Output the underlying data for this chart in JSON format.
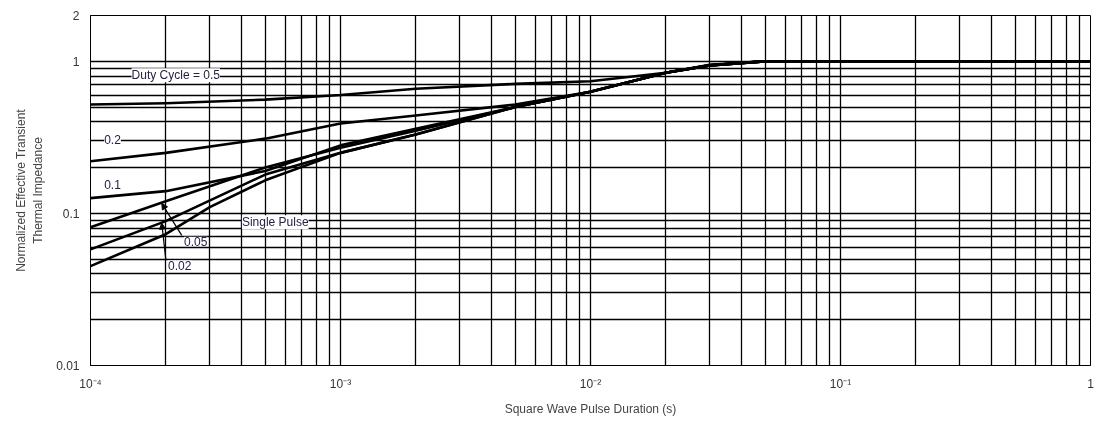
{
  "chart_data": {
    "type": "line",
    "xlabel": "Square Wave Pulse Duration (s)",
    "ylabel": "Normalized Effective Transient\nThermal Impedance",
    "log": "xy",
    "marker": "none",
    "line_style": "solid",
    "xlim": [
      0.0001,
      1
    ],
    "ylim": [
      0.01,
      2
    ],
    "xticks": [
      {
        "value": 0.0001,
        "label": "10⁻⁴"
      },
      {
        "value": 0.0002,
        "label": null
      },
      {
        "value": 0.0003,
        "label": null
      },
      {
        "value": 0.0004,
        "label": null
      },
      {
        "value": 0.0005,
        "label": null
      },
      {
        "value": 0.0006,
        "label": null
      },
      {
        "value": 0.0007,
        "label": null
      },
      {
        "value": 0.0008,
        "label": null
      },
      {
        "value": 0.0009,
        "label": null
      },
      {
        "value": 0.001,
        "label": "10⁻³"
      },
      {
        "value": 0.002,
        "label": null
      },
      {
        "value": 0.003,
        "label": null
      },
      {
        "value": 0.004,
        "label": null
      },
      {
        "value": 0.005,
        "label": null
      },
      {
        "value": 0.006,
        "label": null
      },
      {
        "value": 0.007,
        "label": null
      },
      {
        "value": 0.008,
        "label": null
      },
      {
        "value": 0.009,
        "label": null
      },
      {
        "value": 0.01,
        "label": "10⁻²"
      },
      {
        "value": 0.02,
        "label": null
      },
      {
        "value": 0.03,
        "label": null
      },
      {
        "value": 0.04,
        "label": null
      },
      {
        "value": 0.05,
        "label": null
      },
      {
        "value": 0.06,
        "label": null
      },
      {
        "value": 0.07,
        "label": null
      },
      {
        "value": 0.08,
        "label": null
      },
      {
        "value": 0.09,
        "label": null
      },
      {
        "value": 0.1,
        "label": "10⁻¹"
      },
      {
        "value": 0.2,
        "label": null
      },
      {
        "value": 0.3,
        "label": null
      },
      {
        "value": 0.4,
        "label": null
      },
      {
        "value": 0.5,
        "label": null
      },
      {
        "value": 0.6,
        "label": null
      },
      {
        "value": 0.7,
        "label": null
      },
      {
        "value": 0.8,
        "label": null
      },
      {
        "value": 0.9,
        "label": null
      },
      {
        "value": 1,
        "label": "1"
      }
    ],
    "yticks": [
      {
        "value": 0.01,
        "label": "0.01"
      },
      {
        "value": 0.02,
        "label": null
      },
      {
        "value": 0.03,
        "label": null
      },
      {
        "value": 0.04,
        "label": null
      },
      {
        "value": 0.05,
        "label": null
      },
      {
        "value": 0.06,
        "label": null
      },
      {
        "value": 0.07,
        "label": null
      },
      {
        "value": 0.08,
        "label": null
      },
      {
        "value": 0.09,
        "label": null
      },
      {
        "value": 0.1,
        "label": "0.1"
      },
      {
        "value": 0.2,
        "label": null
      },
      {
        "value": 0.3,
        "label": null
      },
      {
        "value": 0.4,
        "label": null
      },
      {
        "value": 0.5,
        "label": null
      },
      {
        "value": 0.6,
        "label": null
      },
      {
        "value": 0.7,
        "label": null
      },
      {
        "value": 0.8,
        "label": null
      },
      {
        "value": 0.9,
        "label": null
      },
      {
        "value": 1,
        "label": "1"
      },
      {
        "value": 2,
        "label": "2"
      }
    ],
    "series": [
      {
        "name": "Duty Cycle = 0.5",
        "color": "#000000",
        "x": [
          0.0001,
          0.0002,
          0.0005,
          0.001,
          0.002,
          0.005,
          0.01,
          0.02,
          0.03,
          0.05,
          0.1,
          1
        ],
        "values": [
          0.52,
          0.53,
          0.56,
          0.6,
          0.66,
          0.71,
          0.74,
          0.84,
          0.95,
          1.0,
          1.0,
          1.0
        ]
      },
      {
        "name": "0.2",
        "color": "#000000",
        "x": [
          0.0001,
          0.0002,
          0.0005,
          0.001,
          0.002,
          0.005,
          0.01,
          0.02,
          0.03,
          0.05,
          0.1,
          1
        ],
        "values": [
          0.22,
          0.25,
          0.31,
          0.39,
          0.44,
          0.52,
          0.63,
          0.84,
          0.94,
          1.0,
          1.0,
          1.0
        ]
      },
      {
        "name": "0.1",
        "color": "#000000",
        "x": [
          0.0001,
          0.0002,
          0.0005,
          0.001,
          0.002,
          0.005,
          0.01,
          0.02,
          0.03,
          0.05,
          0.1,
          1
        ],
        "values": [
          0.126,
          0.14,
          0.19,
          0.28,
          0.36,
          0.5,
          0.63,
          0.84,
          0.94,
          1.0,
          1.0,
          1.0
        ]
      },
      {
        "name": "0.05",
        "color": "#000000",
        "x": [
          0.0001,
          0.0002,
          0.0005,
          0.001,
          0.002,
          0.005,
          0.01,
          0.02,
          0.03,
          0.05,
          0.1,
          1
        ],
        "values": [
          0.081,
          0.12,
          0.2,
          0.27,
          0.35,
          0.5,
          0.63,
          0.84,
          0.94,
          1.0,
          1.0,
          1.0
        ]
      },
      {
        "name": "0.02",
        "color": "#000000",
        "x": [
          0.0001,
          0.0002,
          0.0005,
          0.001,
          0.002,
          0.005,
          0.01,
          0.02,
          0.03,
          0.05,
          0.1,
          1
        ],
        "values": [
          0.058,
          0.089,
          0.18,
          0.25,
          0.33,
          0.5,
          0.63,
          0.84,
          0.94,
          1.0,
          1.0,
          1.0
        ]
      },
      {
        "name": "Single Pulse",
        "color": "#000000",
        "x": [
          0.0001,
          0.0002,
          0.0003,
          0.0005,
          0.001,
          0.002,
          0.005,
          0.01,
          0.02,
          0.03,
          0.05,
          0.1,
          1
        ],
        "values": [
          0.045,
          0.073,
          0.11,
          0.165,
          0.25,
          0.33,
          0.5,
          0.63,
          0.84,
          0.94,
          1.0,
          1.0,
          1.0
        ]
      }
    ],
    "grid": true
  }
}
